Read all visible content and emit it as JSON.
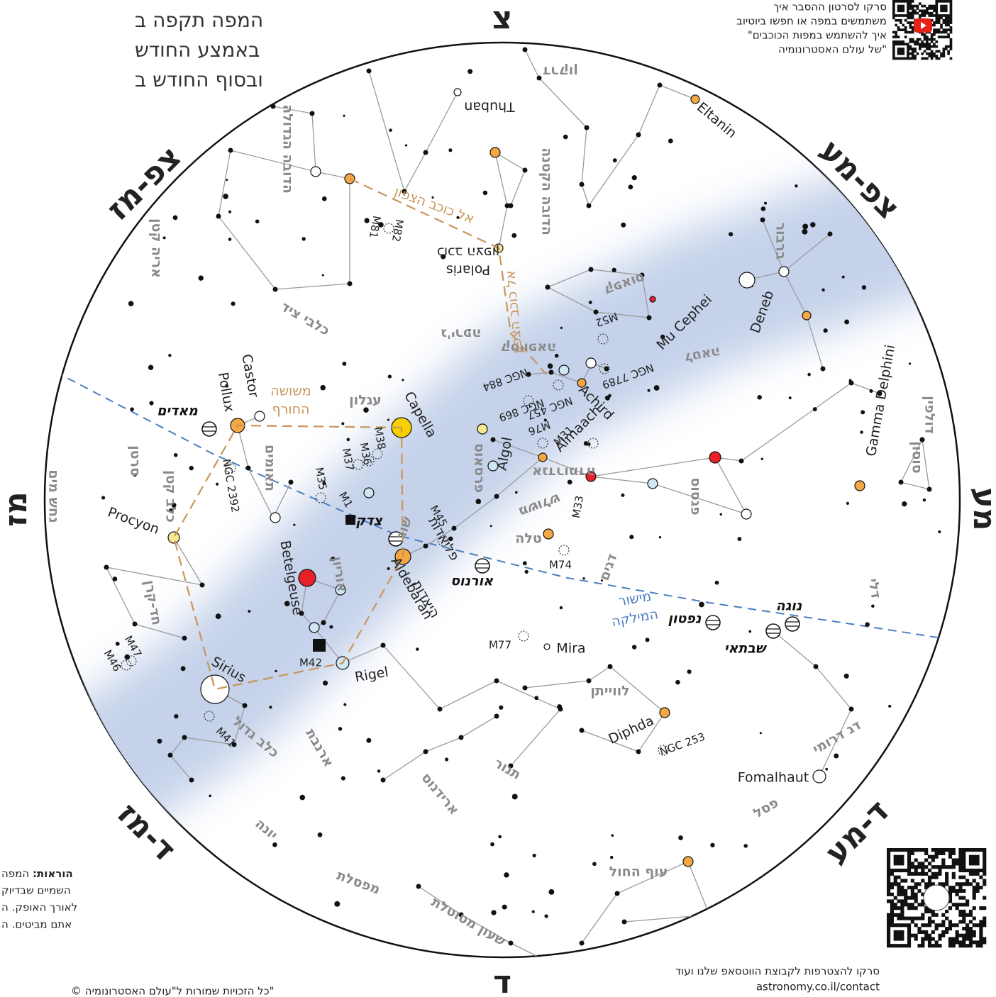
{
  "header": {
    "lines": [
      "המפה תקפה ב",
      "באמצע החודש",
      "ובסוף החודש ב"
    ]
  },
  "qr_top": {
    "lines": [
      "סרקו לסרטון ההסבר איך",
      "משתמשים במפה או חפשו ביוטיוב",
      "\"איך להשתמש במפות הכוכבים",
      "של עולם האסטרונומיה\""
    ]
  },
  "qr_bottom": {
    "lines": [
      "סרקו להצטרפות לקבוצת הווטסאפ שלנו ועוד",
      "astronomy.co.il/contact"
    ]
  },
  "instructions": {
    "label": "הוראות:",
    "lines": [
      "המפה",
      "השמיים שבדיוק",
      "לאורך האופק. ה",
      "אתם מביטים. ה"
    ]
  },
  "copyright": "© כל הזכויות שמורות ל\"עולם האסטרונומיה\"",
  "directions": [
    "צ",
    "צפ-מע",
    "מע",
    "ד-מע",
    "ד",
    "ד-מז",
    "מז",
    "צפ-מז"
  ],
  "constellations": [
    "דרקון",
    "הדובה הקטנה",
    "הדובה הגדולה",
    "אריה קטן",
    "כלבי ציד",
    "ג'ירפה",
    "קסיופאה",
    "קפאוס",
    "לטאה",
    "ברבור",
    "דולפין",
    "סוסון",
    "פגסוס",
    "אנדרומדה",
    "משולש",
    "טלה",
    "דגים",
    "סרטן",
    "תאומים",
    "כלב קטן",
    "עגלון",
    "פרסאוס",
    "שור",
    "אוריון",
    "חד-קרן",
    "לווייתן",
    "דלי",
    "דג דרומי",
    "פסל",
    "עוף החול",
    "שעון מטוטלת",
    "מפסלת",
    "ארידנוס",
    "תנור",
    "ארנבת",
    "כלב גדול",
    "יונה",
    "נחש מים"
  ],
  "asterisms": {
    "winter_hexagon": [
      "משושה",
      "החורף"
    ],
    "pleiades": "פליאדות",
    "hyades": "היאדות",
    "to_polaris": [
      "אל כוכב הצפון",
      "אל כוכב הצפון"
    ]
  },
  "ecliptic": [
    "מישור",
    "המילקה"
  ],
  "stars": [
    "Thuban",
    "Eltanin",
    "Deneb",
    "Mu Cephei",
    "Polaris",
    "כוכב הצפון",
    "Achird",
    "Almaach",
    "Algol",
    "Capella",
    "Castor",
    "Pollux",
    "Procyon",
    "Betelgeuse",
    "Aldebaran",
    "Rigel",
    "Sirius",
    "Mira",
    "Diphda",
    "Fomalhaut",
    "Gamma Delphini"
  ],
  "deep_sky": [
    "M81",
    "M82",
    "M52",
    "NGC 7789",
    "NGC 884",
    "NGC 457",
    "NGC 869",
    "M76",
    "M31",
    "M33",
    "M74",
    "M77",
    "M45",
    "M1",
    "M35",
    "M36",
    "M37",
    "M38",
    "NGC 2392",
    "M42",
    "M47",
    "M46",
    "M41",
    "NGC 253"
  ],
  "planets": [
    "מאדים",
    "צדק",
    "אורנוס",
    "נפטון",
    "שבתאי",
    "נוגה"
  ]
}
